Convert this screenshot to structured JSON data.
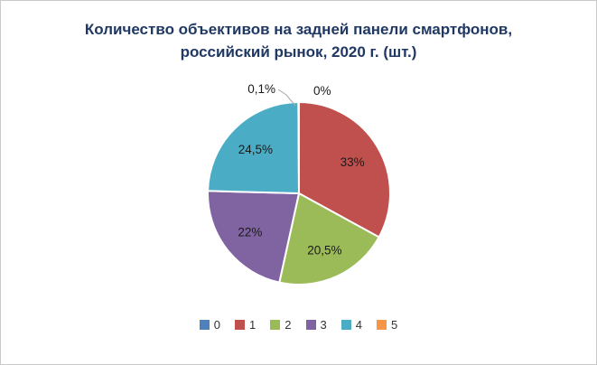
{
  "chart_data": {
    "type": "pie",
    "title_line1": "Количество объективов на задней панели смартфонов,",
    "title_line2": "российский рынок, 2020 г. (шт.)",
    "legend_position": "bottom",
    "direction": "clockwise",
    "start_angle_deg": 0,
    "label_format": "percent",
    "leader_line_color": "#A6A6A6",
    "slice_border_color": "#FFFFFF",
    "title_color": "#1F3864",
    "slices": [
      {
        "name": "0",
        "value": 0,
        "label": "0%",
        "color": "#4F81BD",
        "label_placement": "outside-right"
      },
      {
        "name": "1",
        "value": 33,
        "label": "33%",
        "color": "#C0504D",
        "label_placement": "inside"
      },
      {
        "name": "2",
        "value": 20.5,
        "label": "20,5%",
        "color": "#9BBB59",
        "label_placement": "inside"
      },
      {
        "name": "3",
        "value": 22,
        "label": "22%",
        "color": "#8064A2",
        "label_placement": "inside"
      },
      {
        "name": "4",
        "value": 24.5,
        "label": "24,5%",
        "color": "#4BACC6",
        "label_placement": "inside"
      },
      {
        "name": "5",
        "value": 0.1,
        "label": "0,1%",
        "color": "#F79646",
        "label_placement": "outside-left-leader"
      }
    ]
  }
}
